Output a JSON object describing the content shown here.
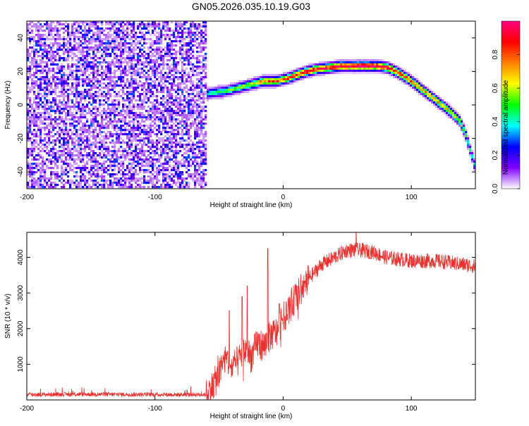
{
  "title": "GN05.2026.035.10.19.G03",
  "colorbar": {
    "label": "Normalized spectral amplitude",
    "ticks": [
      "0.0",
      "0.2",
      "0.4",
      "0.6",
      "0.8"
    ],
    "tick_values": [
      0.0,
      0.2,
      0.4,
      0.6,
      0.8
    ],
    "range": [
      0,
      1
    ],
    "colors": [
      "#ffffff",
      "#8000ff",
      "#0000ff",
      "#00ffff",
      "#00ff00",
      "#ffff00",
      "#ff8000",
      "#ff0000",
      "#ff0080"
    ]
  },
  "chart_data": [
    {
      "type": "heatmap",
      "xlabel": "Height of straight line (km)",
      "ylabel": "Frequency (Hz)",
      "xlim": [
        -200,
        150
      ],
      "ylim": [
        -50,
        50
      ],
      "xticks": [
        -200,
        -100,
        0,
        100
      ],
      "yticks": [
        -40,
        -20,
        0,
        20,
        40
      ],
      "noise_region_x": [
        -200,
        -60
      ],
      "noise_region_peak": 0.3,
      "ridge": {
        "x": [
          -62,
          -55,
          -45,
          -35,
          -25,
          -15,
          -5,
          5,
          15,
          25,
          35,
          45,
          55,
          65,
          75,
          82,
          90,
          100,
          110,
          120,
          130,
          138,
          142,
          147,
          150
        ],
        "y": [
          6,
          7,
          8,
          10,
          12,
          14,
          14,
          16,
          19,
          21,
          22,
          23,
          23,
          23,
          23,
          22,
          19,
          14,
          8,
          2,
          -4,
          -10,
          -17,
          -30,
          -38
        ],
        "amplitude": [
          0.35,
          0.45,
          0.5,
          0.55,
          0.6,
          0.75,
          0.8,
          0.85,
          0.85,
          0.9,
          0.9,
          0.95,
          1.0,
          1.0,
          0.95,
          0.9,
          0.85,
          0.8,
          0.75,
          0.7,
          0.65,
          0.6,
          0.5,
          0.4,
          0.35
        ]
      }
    },
    {
      "type": "line",
      "xlabel": "Height of straight line (km)",
      "ylabel": "SNR (10 * v/v)",
      "xlim": [
        -200,
        150
      ],
      "ylim": [
        0,
        4700
      ],
      "xticks": [
        -200,
        -100,
        0,
        100
      ],
      "yticks": [
        1000,
        2000,
        3000,
        4000
      ],
      "color": "#e8322f",
      "series": [
        {
          "x": [
            -200,
            -150,
            -100,
            -60,
            -55,
            -50,
            -45,
            -40,
            -35,
            -30,
            -25,
            -20,
            -15,
            -10,
            -5,
            0,
            5,
            10,
            15,
            20,
            25,
            30,
            35,
            40,
            45,
            50,
            60,
            70,
            80,
            90,
            100,
            110,
            120,
            130,
            140,
            150
          ],
          "values": [
            150,
            160,
            150,
            150,
            400,
            700,
            1200,
            900,
            1100,
            1400,
            1200,
            1600,
            1500,
            1800,
            1900,
            2300,
            2600,
            2900,
            3100,
            3400,
            3600,
            3800,
            3900,
            4000,
            4100,
            4200,
            4200,
            4150,
            4000,
            3950,
            3900,
            3900,
            3900,
            3850,
            3800,
            3750
          ],
          "spikes": [
            {
              "x": -42,
              "value": 2500
            },
            {
              "x": -32,
              "value": 2900
            },
            {
              "x": -28,
              "value": 3200
            },
            {
              "x": -12,
              "value": 4250
            },
            {
              "x": -3,
              "value": 2700
            },
            {
              "x": 57,
              "value": 4700
            }
          ]
        }
      ]
    }
  ]
}
